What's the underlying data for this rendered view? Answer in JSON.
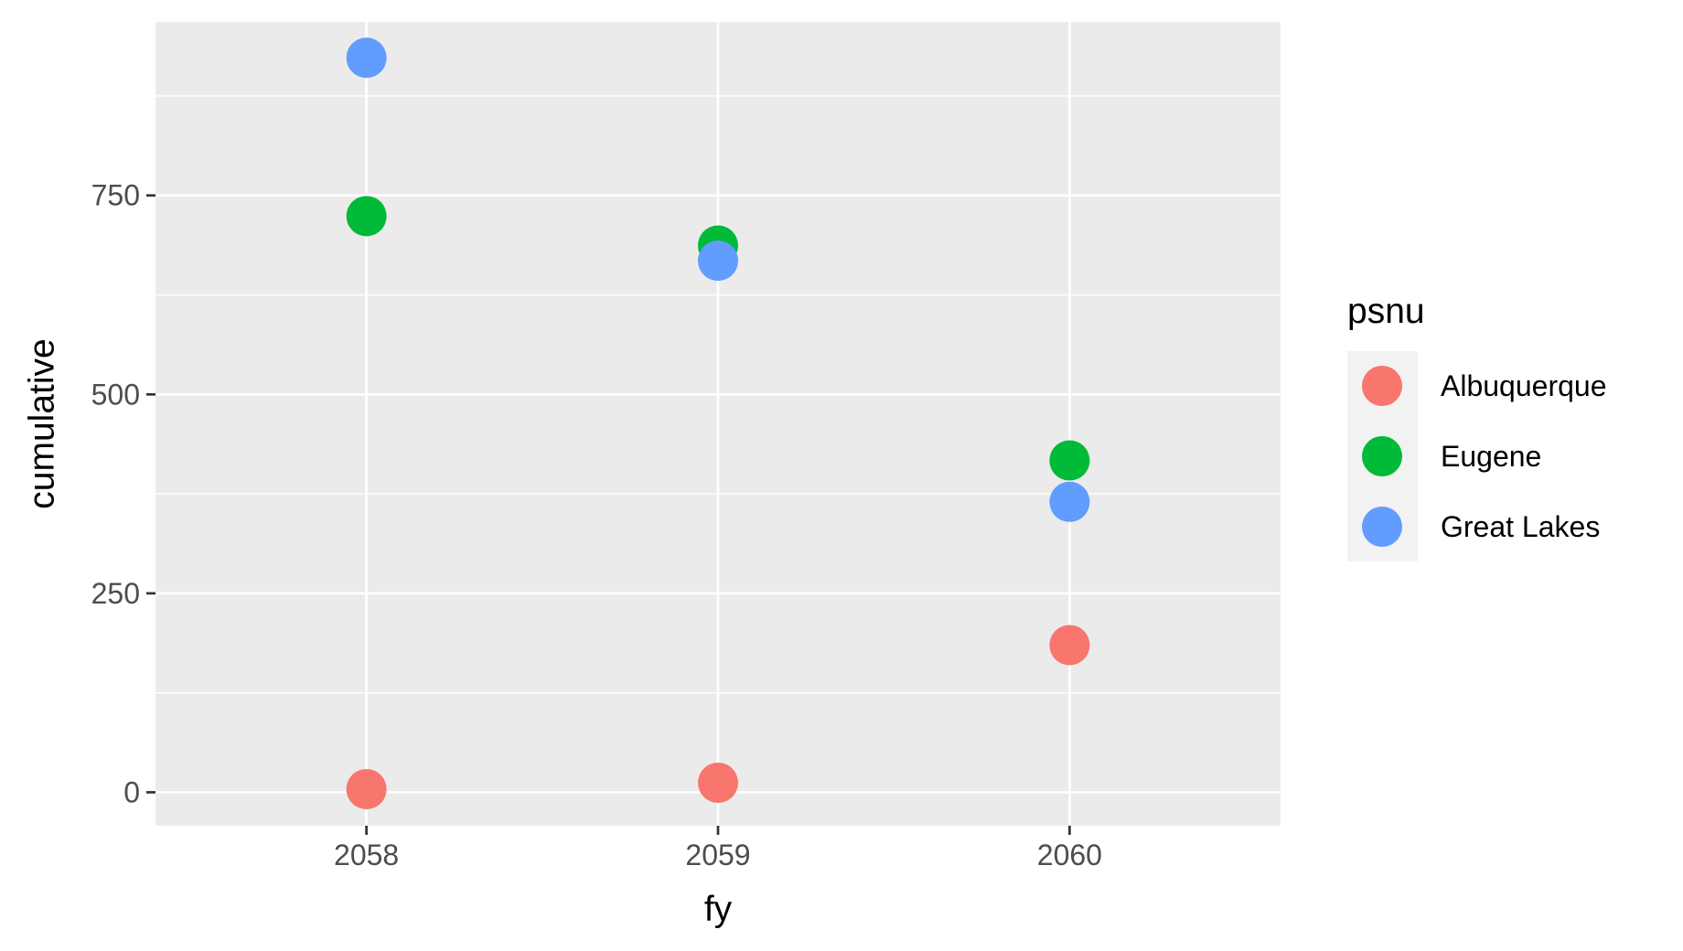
{
  "chart_data": {
    "type": "scatter",
    "xlabel": "fy",
    "ylabel": "cumulative",
    "x_ticks": [
      2058,
      2059,
      2060
    ],
    "x_tick_labels": [
      "2058",
      "2059",
      "2060"
    ],
    "y_ticks": [
      0,
      250,
      500,
      750
    ],
    "y_tick_labels": [
      "0",
      "250",
      "500",
      "750"
    ],
    "xlim": [
      2057.4,
      2060.6
    ],
    "ylim": [
      -42,
      968
    ],
    "grid": true,
    "legend": {
      "title": "psnu",
      "position": "right"
    },
    "series": [
      {
        "name": "Albuquerque",
        "color": "#F8766D",
        "x": [
          2058,
          2059,
          2060
        ],
        "y": [
          4,
          12,
          185
        ]
      },
      {
        "name": "Eugene",
        "color": "#00BA38",
        "x": [
          2058,
          2059,
          2060
        ],
        "y": [
          724,
          687,
          417
        ]
      },
      {
        "name": "Great Lakes",
        "color": "#619CFF",
        "x": [
          2058,
          2059,
          2060
        ],
        "y": [
          923,
          668,
          365
        ]
      }
    ]
  }
}
